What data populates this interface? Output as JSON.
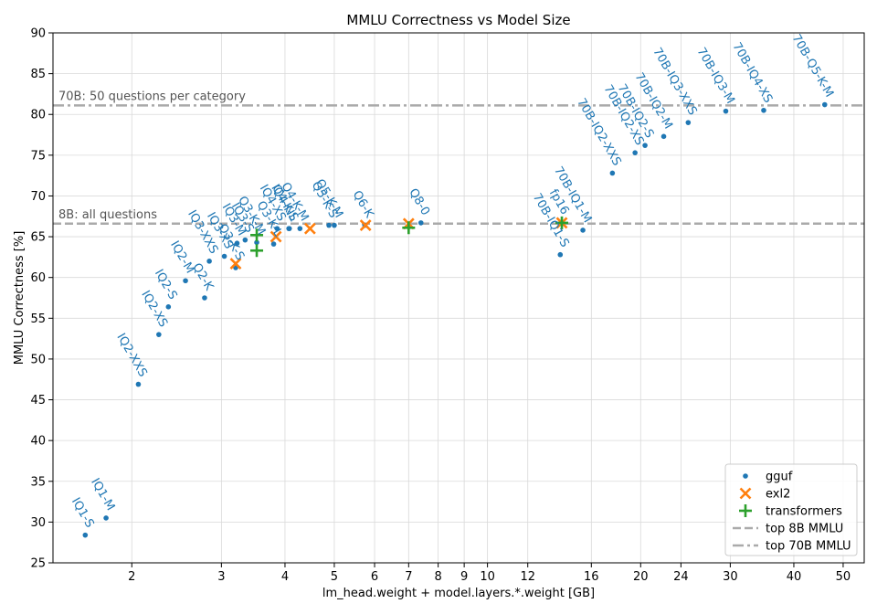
{
  "chart_data": {
    "type": "scatter",
    "title": "MMLU Correctness vs Model Size",
    "xlabel": "lm_head.weight + model.layers.*.weight [GB]",
    "ylabel": "MMLU Correctness [%]",
    "x_scale": "log",
    "xlim": [
      1.4,
      55
    ],
    "ylim": [
      25,
      90
    ],
    "x_ticks": [
      2,
      3,
      4,
      5,
      6,
      7,
      8,
      9,
      10,
      12,
      16,
      20,
      24,
      30,
      40,
      50
    ],
    "y_ticks": [
      25,
      30,
      35,
      40,
      45,
      50,
      55,
      60,
      65,
      70,
      75,
      80,
      85,
      90
    ],
    "grid": true,
    "legend_position": "bottom-right",
    "colors": {
      "gguf": "#1f77b4",
      "exl2": "#ff7f0e",
      "transformers": "#2ca02c",
      "reference": "#aaaaaa"
    },
    "reference_lines": [
      {
        "name": "top 8B MMLU",
        "label": "8B: all questions",
        "y": 66.6,
        "style": "dashed"
      },
      {
        "name": "top 70B MMLU",
        "label": "70B: 50 questions per category",
        "y": 81.1,
        "style": "dashdot"
      }
    ],
    "series": [
      {
        "name": "gguf",
        "marker": "dot",
        "points": [
          {
            "x": 1.62,
            "y": 28.4,
            "label": "IQ1-S"
          },
          {
            "x": 1.78,
            "y": 30.5,
            "label": "IQ1-M"
          },
          {
            "x": 2.06,
            "y": 46.9,
            "label": "IQ2-XXS"
          },
          {
            "x": 2.26,
            "y": 53.0,
            "label": "IQ2-XS"
          },
          {
            "x": 2.36,
            "y": 56.4,
            "label": "IQ2-S"
          },
          {
            "x": 2.55,
            "y": 59.6,
            "label": "IQ2-M"
          },
          {
            "x": 2.78,
            "y": 57.5,
            "label": "Q2-K"
          },
          {
            "x": 2.84,
            "y": 62.0,
            "label": "IQ3-XXS"
          },
          {
            "x": 3.04,
            "y": 62.6,
            "label": "IQ3-XS"
          },
          {
            "x": 3.22,
            "y": 64.2,
            "label": "IQ3-M"
          },
          {
            "x": 3.2,
            "y": 61.2,
            "label": "Q3-K-S"
          },
          {
            "x": 3.34,
            "y": 64.6,
            "label": "IQ3-S"
          },
          {
            "x": 3.52,
            "y": 64.3,
            "label": "Q3-K-M"
          },
          {
            "x": 3.8,
            "y": 64.1,
            "label": "Q3-K-L"
          },
          {
            "x": 3.86,
            "y": 66.0,
            "label": "IQ4-XS"
          },
          {
            "x": 4.08,
            "y": 66.0,
            "label": "Q4-K-S"
          },
          {
            "x": 4.07,
            "y": 66.0,
            "label": "IQ4-NL"
          },
          {
            "x": 4.28,
            "y": 66.0,
            "label": "Q4-K-M"
          },
          {
            "x": 4.88,
            "y": 66.4,
            "label": "Q5-K-S"
          },
          {
            "x": 5.0,
            "y": 66.4,
            "label": "Q5-K-M"
          },
          {
            "x": 5.74,
            "y": 66.4,
            "label": "Q6-K"
          },
          {
            "x": 7.4,
            "y": 66.7,
            "label": "Q8-0"
          },
          {
            "x": 13.9,
            "y": 62.8,
            "label": "70B-IQ1-S"
          },
          {
            "x": 15.4,
            "y": 65.8,
            "label": "70B-IQ1-M"
          },
          {
            "x": 17.6,
            "y": 72.8,
            "label": "70B-IQ2-XXS"
          },
          {
            "x": 19.5,
            "y": 75.3,
            "label": "70B-IQ2-XS"
          },
          {
            "x": 20.4,
            "y": 76.2,
            "label": "70B-IQ2-S"
          },
          {
            "x": 22.2,
            "y": 77.3,
            "label": "70B-IQ2-M"
          },
          {
            "x": 24.8,
            "y": 79.0,
            "label": "70B-IQ3-XXS"
          },
          {
            "x": 29.4,
            "y": 80.4,
            "label": "70B-IQ3-M"
          },
          {
            "x": 34.9,
            "y": 80.5,
            "label": "70B-IQ4-XS"
          },
          {
            "x": 46.0,
            "y": 81.2,
            "label": "70B-Q5-K-M"
          }
        ]
      },
      {
        "name": "exl2",
        "marker": "x",
        "points": [
          {
            "x": 3.2,
            "y": 61.7
          },
          {
            "x": 3.84,
            "y": 65.0
          },
          {
            "x": 4.48,
            "y": 66.0
          },
          {
            "x": 5.76,
            "y": 66.4
          },
          {
            "x": 7.0,
            "y": 66.6
          },
          {
            "x": 14.0,
            "y": 66.7
          }
        ]
      },
      {
        "name": "transformers",
        "marker": "plus",
        "points": [
          {
            "x": 3.52,
            "y": 65.2
          },
          {
            "x": 3.52,
            "y": 63.3
          },
          {
            "x": 7.0,
            "y": 66.1
          },
          {
            "x": 14.0,
            "y": 66.7
          }
        ]
      }
    ],
    "annotations": [
      {
        "text": "fp16",
        "x": 13.9,
        "y": 66.8
      }
    ]
  }
}
